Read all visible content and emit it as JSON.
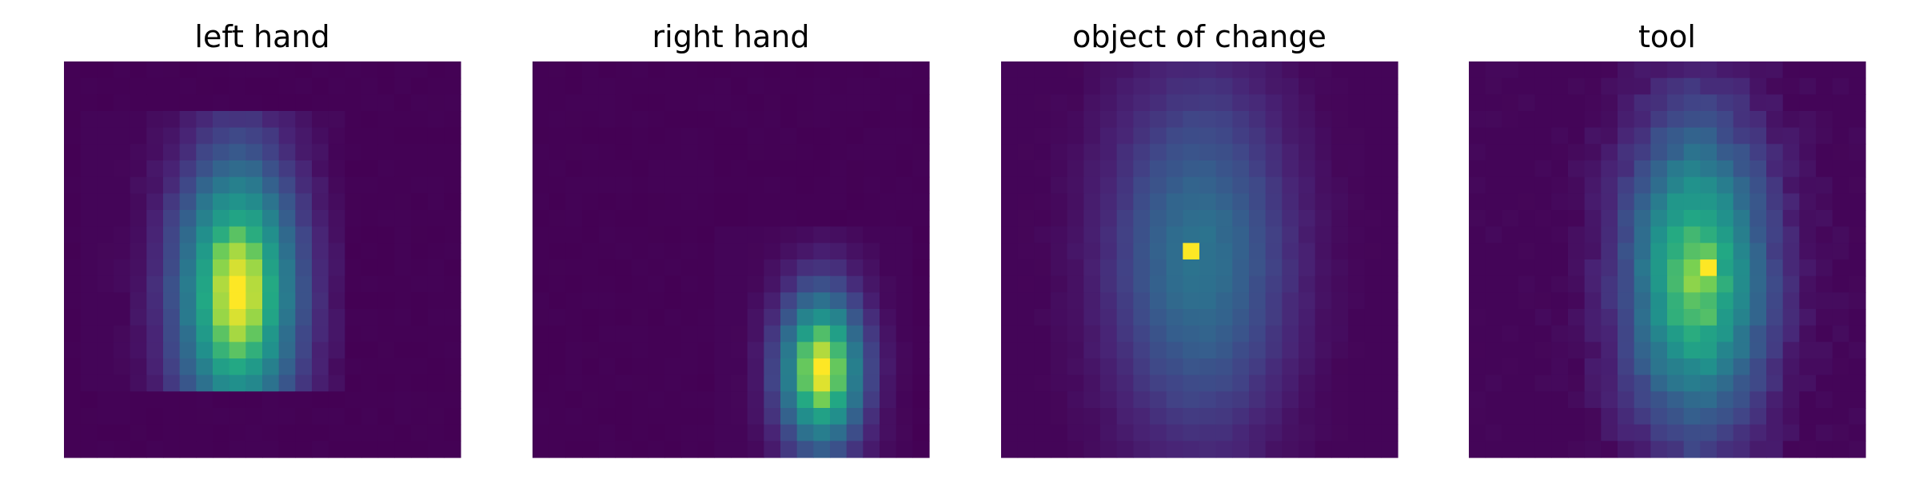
{
  "chart_data": [
    {
      "type": "heatmap",
      "title": "left hand",
      "grid": false,
      "colormap": "viridis",
      "color_min": "#440154",
      "color_max": "#fde725",
      "rows": 24,
      "cols": 24,
      "hotspot": {
        "row": 14,
        "col": 10
      },
      "blob": {
        "center_row": 13.5,
        "center_col": 10,
        "sigma_row": 5.8,
        "sigma_col": 2.6,
        "row_range": [
          3,
          19
        ],
        "col_range": [
          1,
          16
        ],
        "peak": 1.0,
        "noise": 0.03
      }
    },
    {
      "type": "heatmap",
      "title": "right hand",
      "grid": false,
      "colormap": "viridis",
      "color_min": "#440154",
      "color_max": "#fde725",
      "rows": 24,
      "cols": 24,
      "hotspot": {
        "row": 18,
        "col": 17
      },
      "blob": {
        "center_row": 18.2,
        "center_col": 17,
        "sigma_row": 3.4,
        "sigma_col": 1.8,
        "row_range": [
          10,
          23
        ],
        "col_range": [
          11,
          22
        ],
        "peak": 1.0,
        "noise": 0.02
      }
    },
    {
      "type": "heatmap",
      "title": "object of change",
      "grid": false,
      "colormap": "viridis",
      "color_min": "#440154",
      "color_max": "#fde725",
      "rows": 24,
      "cols": 24,
      "hotspot": {
        "row": 11,
        "col": 11
      },
      "blob": {
        "center_row": 11.5,
        "center_col": 11.5,
        "sigma_row": 7.5,
        "sigma_col": 3.8,
        "row_range": [
          0,
          23
        ],
        "col_range": [
          0,
          23
        ],
        "peak": 0.48,
        "noise": 0.02
      }
    },
    {
      "type": "heatmap",
      "title": "tool",
      "grid": false,
      "colormap": "viridis",
      "color_min": "#440154",
      "color_max": "#fde725",
      "rows": 24,
      "cols": 24,
      "hotspot": {
        "row": 12,
        "col": 14
      },
      "blob": {
        "center_row": 12.5,
        "center_col": 13.3,
        "sigma_row": 6.5,
        "sigma_col": 3.0,
        "row_range": [
          0,
          23
        ],
        "col_range": [
          0,
          23
        ],
        "peak": 0.88,
        "noise": 0.06
      }
    }
  ]
}
